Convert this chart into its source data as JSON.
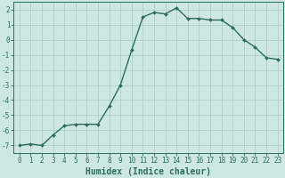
{
  "x": [
    0,
    1,
    2,
    3,
    4,
    5,
    6,
    7,
    8,
    9,
    10,
    11,
    12,
    13,
    14,
    15,
    16,
    17,
    18,
    19,
    20,
    21,
    22,
    23
  ],
  "y": [
    -7,
    -6.9,
    -7,
    -6.3,
    -5.7,
    -5.6,
    -5.6,
    -5.6,
    -4.4,
    -3.0,
    -0.7,
    1.5,
    1.8,
    1.7,
    2.1,
    1.4,
    1.4,
    1.3,
    1.3,
    0.8,
    0.0,
    -0.5,
    -1.2,
    -1.3
  ],
  "line_color": "#2e6b5e",
  "marker": "D",
  "marker_size": 2.0,
  "bg_color": "#cde8e2",
  "grid_color": "#b0cfc8",
  "xlabel": "Humidex (Indice chaleur)",
  "xlim": [
    -0.5,
    23.5
  ],
  "ylim": [
    -7.5,
    2.5
  ],
  "yticks": [
    -7,
    -6,
    -5,
    -4,
    -3,
    -2,
    -1,
    0,
    1,
    2
  ],
  "xticks": [
    0,
    1,
    2,
    3,
    4,
    5,
    6,
    7,
    8,
    9,
    10,
    11,
    12,
    13,
    14,
    15,
    16,
    17,
    18,
    19,
    20,
    21,
    22,
    23
  ],
  "tick_label_fontsize": 5.5,
  "xlabel_fontsize": 7.0,
  "line_width": 1.0
}
